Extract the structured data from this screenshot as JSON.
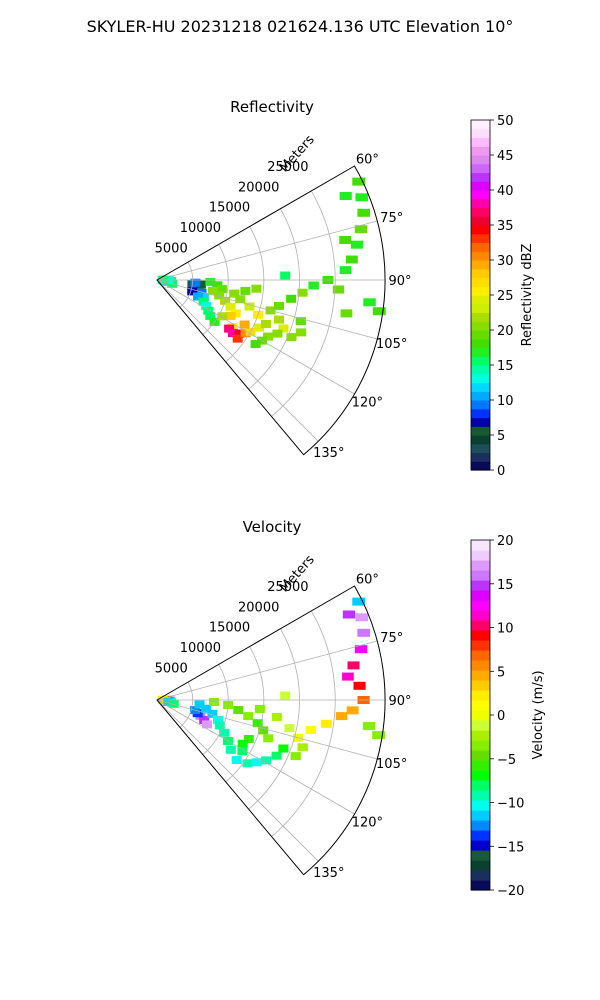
{
  "figure": {
    "suptitle": "SKYLER-HU  20231218  021624.136 UTC Elevation 10°"
  },
  "chart_data": [
    {
      "type": "heatmap",
      "title": "Reflectivity",
      "projection": "polar sector",
      "r_axis_label": "Meters",
      "r_ticks": [
        5000,
        10000,
        15000,
        20000,
        25000
      ],
      "r_tick_labels": [
        "5000",
        "10000",
        "15000",
        "20000",
        "25000"
      ],
      "r_max": 32000,
      "theta_range_deg": [
        60,
        140
      ],
      "theta_ticks": [
        60,
        75,
        90,
        105,
        120,
        135
      ],
      "theta_tick_labels": [
        "60°",
        "75°",
        "90°",
        "105°",
        "120°",
        "135°"
      ],
      "grid": true,
      "colorbar": {
        "label": "Reflectivity dBZ",
        "range": [
          0,
          50
        ],
        "ticks": [
          0,
          5,
          10,
          15,
          20,
          25,
          30,
          35,
          40,
          45,
          50
        ],
        "tick_labels": [
          "0",
          "5",
          "10",
          "15",
          "20",
          "25",
          "30",
          "35",
          "40",
          "45",
          "50"
        ],
        "colormap": "NWSRef"
      },
      "cells": [
        {
          "theta": 91,
          "r": 800,
          "v": 14
        },
        {
          "theta": 92,
          "r": 1400,
          "v": 16
        },
        {
          "theta": 94,
          "r": 2000,
          "v": 15
        },
        {
          "theta": 96,
          "r": 1000,
          "v": 18
        },
        {
          "theta": 99,
          "r": 1800,
          "v": 14
        },
        {
          "theta": 101,
          "r": 1200,
          "v": 12
        },
        {
          "theta": 104,
          "r": 2200,
          "v": 16
        },
        {
          "theta": 88,
          "r": 1600,
          "v": 13
        },
        {
          "theta": 86,
          "r": 900,
          "v": 15
        },
        {
          "theta": 97,
          "r": 5000,
          "v": 6
        },
        {
          "theta": 100,
          "r": 5600,
          "v": 8
        },
        {
          "theta": 103,
          "r": 6000,
          "v": 10
        },
        {
          "theta": 96,
          "r": 6200,
          "v": 5
        },
        {
          "theta": 106,
          "r": 6500,
          "v": 9
        },
        {
          "theta": 110,
          "r": 7000,
          "v": 12
        },
        {
          "theta": 94,
          "r": 5400,
          "v": 9
        },
        {
          "theta": 108,
          "r": 5200,
          "v": 7
        },
        {
          "theta": 112,
          "r": 6200,
          "v": 11
        },
        {
          "theta": 115,
          "r": 7200,
          "v": 16
        },
        {
          "theta": 118,
          "r": 7800,
          "v": 13
        },
        {
          "theta": 121,
          "r": 8400,
          "v": 15
        },
        {
          "theta": 124,
          "r": 9000,
          "v": 16
        },
        {
          "theta": 126,
          "r": 10000,
          "v": 17
        },
        {
          "theta": 92,
          "r": 7500,
          "v": 17
        },
        {
          "theta": 95,
          "r": 8500,
          "v": 18
        },
        {
          "theta": 98,
          "r": 9200,
          "v": 19
        },
        {
          "theta": 101,
          "r": 8000,
          "v": 20
        },
        {
          "theta": 104,
          "r": 9000,
          "v": 21
        },
        {
          "theta": 107,
          "r": 10000,
          "v": 22
        },
        {
          "theta": 110,
          "r": 11000,
          "v": 24
        },
        {
          "theta": 113,
          "r": 12000,
          "v": 26
        },
        {
          "theta": 116,
          "r": 11500,
          "v": 28
        },
        {
          "theta": 119,
          "r": 10500,
          "v": 22
        },
        {
          "theta": 122,
          "r": 12500,
          "v": 25
        },
        {
          "theta": 124,
          "r": 12200,
          "v": 37
        },
        {
          "theta": 125,
          "r": 13000,
          "v": 38
        },
        {
          "theta": 123,
          "r": 13800,
          "v": 35
        },
        {
          "theta": 126,
          "r": 14000,
          "v": 33
        },
        {
          "theta": 121,
          "r": 14500,
          "v": 30
        },
        {
          "theta": 119,
          "r": 15000,
          "v": 27
        },
        {
          "theta": 117,
          "r": 13800,
          "v": 29
        },
        {
          "theta": 115,
          "r": 15800,
          "v": 24
        },
        {
          "theta": 112,
          "r": 16500,
          "v": 22
        },
        {
          "theta": 109,
          "r": 15000,
          "v": 25
        },
        {
          "theta": 106,
          "r": 13500,
          "v": 23
        },
        {
          "theta": 103,
          "r": 12000,
          "v": 21
        },
        {
          "theta": 100,
          "r": 11000,
          "v": 20
        },
        {
          "theta": 97,
          "r": 12500,
          "v": 19
        },
        {
          "theta": 95,
          "r": 14000,
          "v": 20
        },
        {
          "theta": 108,
          "r": 18000,
          "v": 22
        },
        {
          "theta": 111,
          "r": 19000,
          "v": 24
        },
        {
          "theta": 114,
          "r": 18500,
          "v": 21
        },
        {
          "theta": 117,
          "r": 17500,
          "v": 20
        },
        {
          "theta": 120,
          "r": 17000,
          "v": 19
        },
        {
          "theta": 123,
          "r": 16500,
          "v": 18
        },
        {
          "theta": 105,
          "r": 16500,
          "v": 20
        },
        {
          "theta": 102,
          "r": 17500,
          "v": 19
        },
        {
          "theta": 98,
          "r": 19000,
          "v": 18
        },
        {
          "theta": 95,
          "r": 20500,
          "v": 20
        },
        {
          "theta": 92,
          "r": 22000,
          "v": 17
        },
        {
          "theta": 90,
          "r": 24000,
          "v": 18
        },
        {
          "theta": 93,
          "r": 25500,
          "v": 19
        },
        {
          "theta": 87,
          "r": 26500,
          "v": 17
        },
        {
          "theta": 84,
          "r": 27500,
          "v": 18
        },
        {
          "theta": 80,
          "r": 28500,
          "v": 17
        },
        {
          "theta": 76,
          "r": 29500,
          "v": 19
        },
        {
          "theta": 72,
          "r": 30500,
          "v": 18
        },
        {
          "theta": 68,
          "r": 31000,
          "v": 17
        },
        {
          "theta": 64,
          "r": 31500,
          "v": 18
        },
        {
          "theta": 66,
          "r": 29000,
          "v": 17
        },
        {
          "theta": 78,
          "r": 27000,
          "v": 18
        },
        {
          "theta": 98,
          "r": 31500,
          "v": 18
        },
        {
          "theta": 96,
          "r": 30000,
          "v": 17
        },
        {
          "theta": 100,
          "r": 27000,
          "v": 19
        },
        {
          "theta": 113,
          "r": 20500,
          "v": 20
        },
        {
          "theta": 110,
          "r": 21500,
          "v": 21
        },
        {
          "theta": 106,
          "r": 21000,
          "v": 19
        },
        {
          "theta": 88,
          "r": 18000,
          "v": 16
        }
      ]
    },
    {
      "type": "heatmap",
      "title": "Velocity",
      "projection": "polar sector",
      "r_axis_label": "Meters",
      "r_ticks": [
        5000,
        10000,
        15000,
        20000,
        25000
      ],
      "r_tick_labels": [
        "5000",
        "10000",
        "15000",
        "20000",
        "25000"
      ],
      "r_max": 32000,
      "theta_range_deg": [
        60,
        140
      ],
      "theta_ticks": [
        60,
        75,
        90,
        105,
        120,
        135
      ],
      "theta_tick_labels": [
        "60°",
        "75°",
        "90°",
        "105°",
        "120°",
        "135°"
      ],
      "grid": true,
      "colorbar": {
        "label": "Velocity (m/s)",
        "range": [
          -20,
          20
        ],
        "ticks": [
          -20,
          -15,
          -10,
          -5,
          0,
          5,
          10,
          15,
          20
        ],
        "tick_labels": [
          "−20",
          "−15",
          "−10",
          "−5",
          "0",
          "5",
          "10",
          "15",
          "20"
        ],
        "colormap": "NWSVel"
      },
      "cells": [
        {
          "theta": 91,
          "r": 1000,
          "v": 12
        },
        {
          "theta": 93,
          "r": 1800,
          "v": 15
        },
        {
          "theta": 89,
          "r": 1400,
          "v": 8
        },
        {
          "theta": 95,
          "r": 1200,
          "v": 4
        },
        {
          "theta": 97,
          "r": 2000,
          "v": -10
        },
        {
          "theta": 87,
          "r": 800,
          "v": 2
        },
        {
          "theta": 100,
          "r": 1600,
          "v": -12
        },
        {
          "theta": 103,
          "r": 2400,
          "v": -8
        },
        {
          "theta": 110,
          "r": 6500,
          "v": 16
        },
        {
          "theta": 113,
          "r": 7200,
          "v": 15
        },
        {
          "theta": 116,
          "r": 7800,
          "v": 17
        },
        {
          "theta": 108,
          "r": 6000,
          "v": -14
        },
        {
          "theta": 105,
          "r": 5500,
          "v": -13
        },
        {
          "theta": 96,
          "r": 6000,
          "v": -11
        },
        {
          "theta": 100,
          "r": 7000,
          "v": -12
        },
        {
          "theta": 104,
          "r": 8000,
          "v": -11
        },
        {
          "theta": 108,
          "r": 9000,
          "v": -10
        },
        {
          "theta": 112,
          "r": 9500,
          "v": -9
        },
        {
          "theta": 116,
          "r": 10500,
          "v": -9
        },
        {
          "theta": 120,
          "r": 11500,
          "v": -8
        },
        {
          "theta": 124,
          "r": 12500,
          "v": -9
        },
        {
          "theta": 127,
          "r": 14000,
          "v": -10
        },
        {
          "theta": 125,
          "r": 15500,
          "v": -9
        },
        {
          "theta": 122,
          "r": 16500,
          "v": -10
        },
        {
          "theta": 119,
          "r": 17500,
          "v": -9
        },
        {
          "theta": 115,
          "r": 18500,
          "v": -8
        },
        {
          "theta": 111,
          "r": 19000,
          "v": -7
        },
        {
          "theta": 92,
          "r": 8000,
          "v": -4
        },
        {
          "theta": 94,
          "r": 10000,
          "v": -3
        },
        {
          "theta": 97,
          "r": 11500,
          "v": -5
        },
        {
          "theta": 100,
          "r": 13000,
          "v": -4
        },
        {
          "theta": 103,
          "r": 14500,
          "v": -6
        },
        {
          "theta": 106,
          "r": 15500,
          "v": -5
        },
        {
          "theta": 109,
          "r": 16500,
          "v": -4
        },
        {
          "theta": 113,
          "r": 14000,
          "v": -6
        },
        {
          "theta": 117,
          "r": 13500,
          "v": -7
        },
        {
          "theta": 121,
          "r": 14000,
          "v": -8
        },
        {
          "theta": 95,
          "r": 14500,
          "v": -3
        },
        {
          "theta": 98,
          "r": 17000,
          "v": -2
        },
        {
          "theta": 102,
          "r": 19000,
          "v": -1
        },
        {
          "theta": 105,
          "r": 20500,
          "v": 0
        },
        {
          "theta": 101,
          "r": 22000,
          "v": 1
        },
        {
          "theta": 98,
          "r": 24000,
          "v": 2
        },
        {
          "theta": 95,
          "r": 26000,
          "v": 4
        },
        {
          "theta": 93,
          "r": 27500,
          "v": 5
        },
        {
          "theta": 90,
          "r": 29000,
          "v": 7
        },
        {
          "theta": 86,
          "r": 28500,
          "v": 9
        },
        {
          "theta": 83,
          "r": 27000,
          "v": 11
        },
        {
          "theta": 80,
          "r": 28000,
          "v": 10
        },
        {
          "theta": 76,
          "r": 29500,
          "v": 13
        },
        {
          "theta": 72,
          "r": 30500,
          "v": 16
        },
        {
          "theta": 68,
          "r": 31000,
          "v": 17
        },
        {
          "theta": 64,
          "r": 31500,
          "v": -11
        },
        {
          "theta": 66,
          "r": 29500,
          "v": 15
        },
        {
          "theta": 99,
          "r": 31500,
          "v": -3
        },
        {
          "theta": 97,
          "r": 30000,
          "v": -4
        },
        {
          "theta": 108,
          "r": 21500,
          "v": -2
        },
        {
          "theta": 112,
          "r": 21000,
          "v": -3
        },
        {
          "theta": 88,
          "r": 18000,
          "v": -1
        }
      ]
    }
  ]
}
